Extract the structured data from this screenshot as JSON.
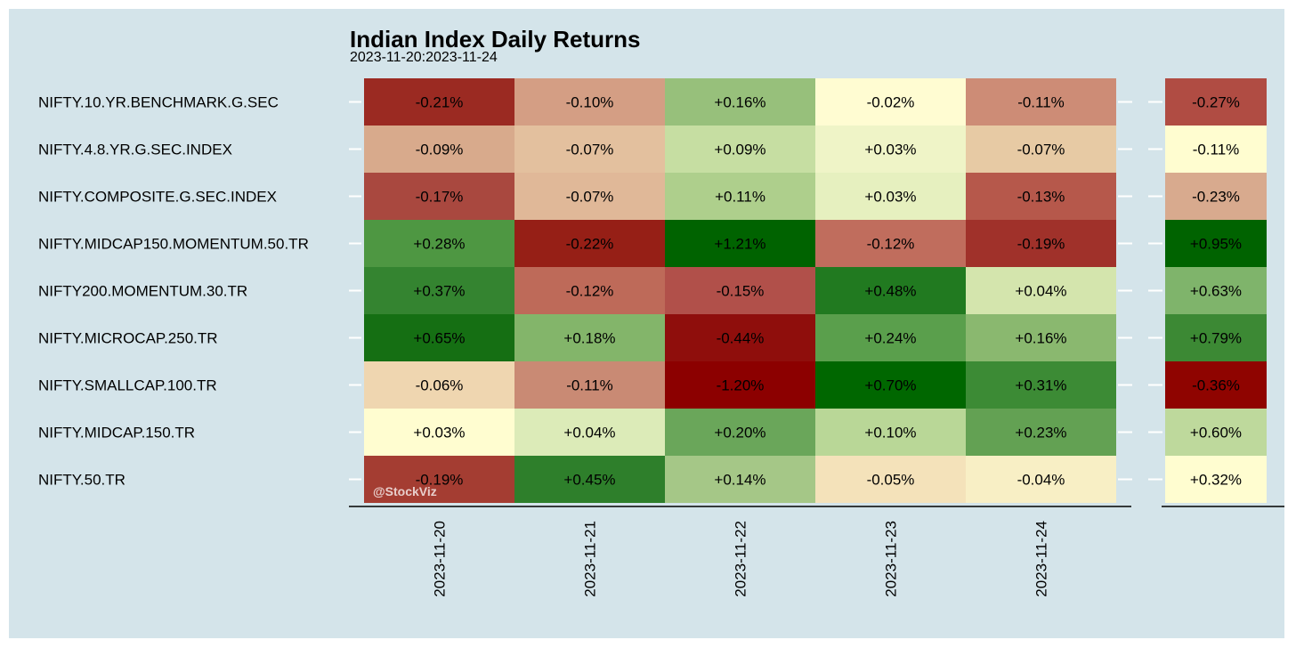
{
  "chart_data": {
    "type": "heatmap",
    "title": "Indian Index Daily Returns",
    "subtitle": "2023-11-20:2023-11-24",
    "watermark": "@StockViz",
    "rows": [
      "NIFTY.10.YR.BENCHMARK.G.SEC",
      "NIFTY.4.8.YR.G.SEC.INDEX",
      "NIFTY.COMPOSITE.G.SEC.INDEX",
      "NIFTY.MIDCAP150.MOMENTUM.50.TR",
      "NIFTY200.MOMENTUM.30.TR",
      "NIFTY.MICROCAP.250.TR",
      "NIFTY.SMALLCAP.100.TR",
      "NIFTY.MIDCAP.150.TR",
      "NIFTY.50.TR"
    ],
    "columns": [
      "2023-11-20",
      "2023-11-21",
      "2023-11-22",
      "2023-11-23",
      "2023-11-24"
    ],
    "values": [
      [
        -0.21,
        -0.1,
        0.16,
        -0.02,
        -0.11
      ],
      [
        -0.09,
        -0.07,
        0.09,
        0.03,
        -0.07
      ],
      [
        -0.17,
        -0.07,
        0.11,
        0.03,
        -0.13
      ],
      [
        0.28,
        -0.22,
        1.21,
        -0.12,
        -0.19
      ],
      [
        0.37,
        -0.12,
        -0.15,
        0.48,
        0.04
      ],
      [
        0.65,
        0.18,
        -0.44,
        0.24,
        0.16
      ],
      [
        -0.06,
        -0.11,
        -1.2,
        0.7,
        0.31
      ],
      [
        0.03,
        0.04,
        0.2,
        0.1,
        0.23
      ],
      [
        -0.19,
        0.45,
        0.14,
        -0.05,
        -0.04
      ]
    ],
    "labels": [
      [
        "-0.21%",
        "-0.10%",
        "+0.16%",
        "-0.02%",
        "-0.11%"
      ],
      [
        "-0.09%",
        "-0.07%",
        "+0.09%",
        "+0.03%",
        "-0.07%"
      ],
      [
        "-0.17%",
        "-0.07%",
        "+0.11%",
        "+0.03%",
        "-0.13%"
      ],
      [
        "+0.28%",
        "-0.22%",
        "+1.21%",
        "-0.12%",
        "-0.19%"
      ],
      [
        "+0.37%",
        "-0.12%",
        "-0.15%",
        "+0.48%",
        "+0.04%"
      ],
      [
        "+0.65%",
        "+0.18%",
        "-0.44%",
        "+0.24%",
        "+0.16%"
      ],
      [
        "-0.06%",
        "-0.11%",
        "-1.20%",
        "+0.70%",
        "+0.31%"
      ],
      [
        "+0.03%",
        "+0.04%",
        "+0.20%",
        "+0.10%",
        "+0.23%"
      ],
      [
        "-0.19%",
        "+0.45%",
        "+0.14%",
        "-0.05%",
        "-0.04%"
      ]
    ],
    "cell_colors": [
      [
        "#9b2a22",
        "#d49e84",
        "#97c07b",
        "#fffcd2",
        "#cd8c76"
      ],
      [
        "#d8aa8c",
        "#e3c09e",
        "#c6dea2",
        "#eff4c7",
        "#e7caa4"
      ],
      [
        "#a9483f",
        "#e0b898",
        "#aecf8c",
        "#e6f0bf",
        "#b6584b"
      ],
      [
        "#4e9742",
        "#961f16",
        "#006300",
        "#c06d5d",
        "#a0312a"
      ],
      [
        "#348430",
        "#be6a59",
        "#b1504a",
        "#217a20",
        "#d4e5ad"
      ],
      [
        "#156f13",
        "#83b56a",
        "#8f0e0c",
        "#5a9f4c",
        "#8ab86f"
      ],
      [
        "#efd6b0",
        "#c98a74",
        "#8c0000",
        "#006700",
        "#3c8b35"
      ],
      [
        "#fffdd0",
        "#dcebb8",
        "#6aa65a",
        "#b9d797",
        "#63a153"
      ],
      [
        "#a43d32",
        "#2e7f2b",
        "#a5c787",
        "#f4e2ba",
        "#f8efc5"
      ]
    ],
    "summary_labels": [
      "-0.27%",
      "-0.11%",
      "-0.23%",
      "+0.95%",
      "+0.63%",
      "+0.79%",
      "-0.36%",
      "+0.60%",
      "+0.32%"
    ],
    "summary_values": [
      -0.27,
      -0.11,
      -0.23,
      0.95,
      0.63,
      0.79,
      -0.36,
      0.6,
      0.32
    ],
    "summary_colors": [
      "#b04c43",
      "#fffdd0",
      "#d8aa8e",
      "#006300",
      "#7fb46b",
      "#3c8934",
      "#8f0400",
      "#bed99c",
      "#fffdd0"
    ],
    "colors": {
      "background": "#d4e4ea",
      "negative": "#8b0000",
      "neutral": "#ffffcc",
      "positive": "#006400"
    }
  }
}
